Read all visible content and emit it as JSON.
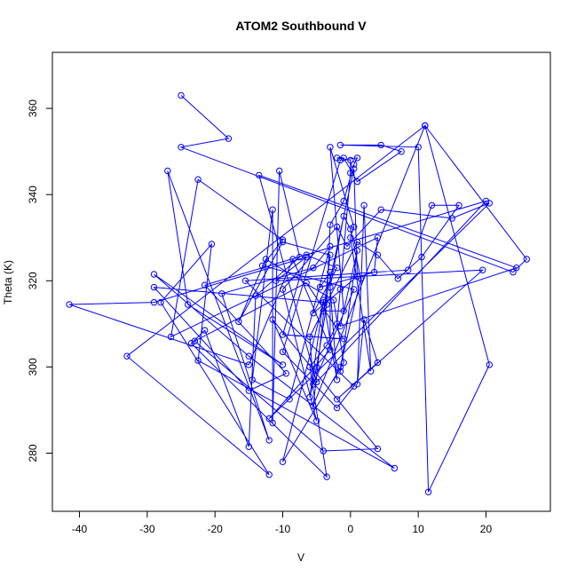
{
  "chart_data": {
    "type": "line",
    "title": "ATOM2 Southbound V",
    "xlabel": "V",
    "ylabel": "Theta (K)",
    "xlim": [
      -44,
      29.5
    ],
    "ylim": [
      266.5,
      373
    ],
    "x_ticks": [
      -40,
      -30,
      -20,
      -10,
      0,
      10,
      20
    ],
    "y_ticks": [
      280,
      300,
      320,
      340,
      360
    ],
    "grid": false,
    "series_color": "#0000ff",
    "points": [
      [
        -25,
        363
      ],
      [
        -18,
        353
      ],
      [
        -25,
        351
      ],
      [
        24,
        322
      ],
      [
        26,
        325
      ],
      [
        11,
        356
      ],
      [
        20.5,
        300.5
      ],
      [
        11.5,
        271
      ],
      [
        10,
        351
      ],
      [
        -1.5,
        351.5
      ],
      [
        4.5,
        351.5
      ],
      [
        7.5,
        350
      ],
      [
        1,
        343
      ],
      [
        -1,
        348.5
      ],
      [
        -2,
        348.5
      ],
      [
        0,
        348
      ],
      [
        0,
        345
      ],
      [
        -1.5,
        318
      ],
      [
        -2,
        310
      ],
      [
        -3.5,
        305
      ],
      [
        -6,
        300
      ],
      [
        -3.5,
        274.5
      ],
      [
        -23.5,
        305.5
      ],
      [
        -21.5,
        308.5
      ],
      [
        -15,
        281.5
      ],
      [
        -14,
        316.5
      ],
      [
        -7.5,
        325.5
      ],
      [
        -10.5,
        345.5
      ],
      [
        -11.5,
        287
      ],
      [
        -11.5,
        336.5
      ],
      [
        -14.5,
        297
      ],
      [
        -9,
        292.5
      ],
      [
        -3,
        328
      ],
      [
        -5.5,
        323
      ],
      [
        -19,
        317
      ],
      [
        -12,
        283
      ],
      [
        -27,
        345.5
      ],
      [
        -24,
        314.5
      ],
      [
        -10,
        300.5
      ],
      [
        -29,
        321.5
      ],
      [
        -15,
        302.5
      ],
      [
        6.5,
        276.5
      ],
      [
        -22.5,
        301.5
      ],
      [
        -20.5,
        328.5
      ],
      [
        -28,
        315
      ],
      [
        -12,
        275
      ],
      [
        -33,
        302.5
      ],
      [
        11,
        356
      ],
      [
        -5.5,
        291
      ],
      [
        -3,
        326
      ],
      [
        -10,
        329
      ],
      [
        -16.5,
        310.5
      ],
      [
        -12.5,
        325
      ],
      [
        -2.5,
        315.5
      ],
      [
        -1,
        301
      ],
      [
        -10,
        278
      ],
      [
        -4,
        315
      ],
      [
        -29,
        318.5
      ],
      [
        -15,
        294.5
      ],
      [
        -9.5,
        298.5
      ],
      [
        -21.5,
        319
      ],
      [
        20,
        338.5
      ],
      [
        -5,
        296.5
      ],
      [
        -13.5,
        344.5
      ],
      [
        24.5,
        323
      ],
      [
        -1.5,
        309.5
      ],
      [
        1,
        327
      ],
      [
        -1.5,
        299
      ],
      [
        -8.5,
        325
      ],
      [
        -15,
        300.5
      ],
      [
        -41.5,
        314.5
      ],
      [
        -29,
        315
      ],
      [
        -6.5,
        325.5
      ],
      [
        -11,
        320
      ],
      [
        19.5,
        322.5
      ],
      [
        -2,
        292.5
      ],
      [
        4,
        301
      ],
      [
        2,
        311
      ],
      [
        1,
        296
      ],
      [
        2,
        337.5
      ],
      [
        3,
        299
      ],
      [
        0,
        330
      ],
      [
        0.5,
        332.5
      ],
      [
        -3,
        351
      ],
      [
        -1,
        313
      ],
      [
        -4,
        313
      ],
      [
        0.5,
        346
      ],
      [
        1,
        321
      ],
      [
        -5.5,
        312.5
      ],
      [
        -2,
        323
      ],
      [
        -6.5,
        326
      ],
      [
        -10,
        307.5
      ],
      [
        -1,
        306.5
      ],
      [
        -6.5,
        319.5
      ],
      [
        -23,
        306
      ],
      [
        -4,
        280.5
      ],
      [
        4,
        281
      ],
      [
        -11.5,
        311
      ],
      [
        -5,
        287.5
      ],
      [
        -10,
        318
      ],
      [
        -2,
        332.5
      ],
      [
        -0.5,
        328
      ],
      [
        4.5,
        336.5
      ],
      [
        15,
        334.5
      ],
      [
        20.5,
        338
      ],
      [
        -12,
        288
      ],
      [
        -3,
        304
      ],
      [
        -3,
        322
      ],
      [
        -4.5,
        318.5
      ],
      [
        3.5,
        322
      ],
      [
        4,
        330
      ],
      [
        -26.5,
        307
      ],
      [
        -22.5,
        343.5
      ],
      [
        -10,
        329.5
      ],
      [
        -13,
        323.5
      ],
      [
        0.5,
        318
      ],
      [
        -5.5,
        296
      ],
      [
        -6,
        307
      ],
      [
        1,
        329
      ],
      [
        4,
        326
      ],
      [
        7,
        320.5
      ],
      [
        10.5,
        325.5
      ],
      [
        16,
        337.5
      ],
      [
        12,
        337.5
      ],
      [
        8.5,
        322.5
      ],
      [
        -15.5,
        320
      ],
      [
        0.5,
        295.5
      ],
      [
        -2,
        290.5
      ],
      [
        -10,
        303.5
      ],
      [
        -1.5,
        348
      ],
      [
        1,
        348.5
      ],
      [
        0.5,
        347
      ],
      [
        -1,
        338.5
      ],
      [
        -3,
        333
      ],
      [
        -3.5,
        314.5
      ],
      [
        -5,
        300
      ],
      [
        -6,
        293
      ],
      [
        -4,
        315.5
      ],
      [
        -2,
        297
      ],
      [
        -3,
        318.5
      ],
      [
        -1,
        335
      ],
      [
        0,
        332
      ],
      [
        1.5,
        320.5
      ],
      [
        -1.5,
        300
      ]
    ]
  }
}
